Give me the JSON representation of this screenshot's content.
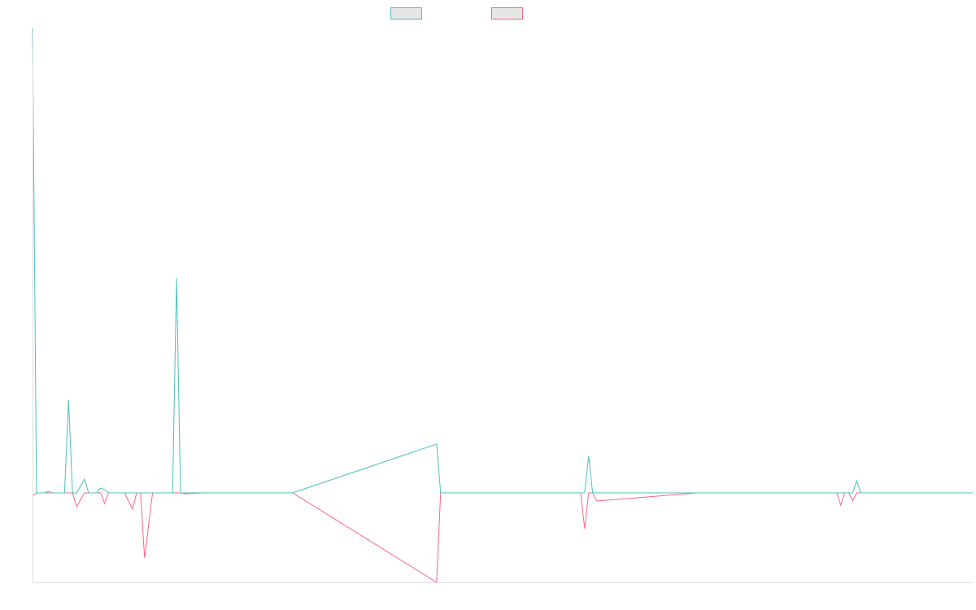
{
  "colors": {
    "series_a": "#4bc0c0",
    "series_b": "#ff6384",
    "axis": "#dddddd",
    "legend_fill": "#e6e6e6"
  },
  "chart_data": {
    "type": "line",
    "xlabel": "",
    "ylabel": "",
    "grid": false,
    "legend_placement": "top-center",
    "ylim": [
      -110,
      570
    ],
    "x": [
      0,
      1,
      3,
      4,
      5,
      6,
      8,
      9,
      10,
      11,
      13,
      14,
      15,
      16,
      17,
      18,
      19,
      20,
      21,
      23,
      25,
      26,
      27,
      28,
      30,
      31,
      32,
      33,
      35,
      36,
      37,
      38,
      43,
      44,
      45,
      46,
      51,
      52,
      53,
      54,
      55,
      58,
      59,
      60,
      61,
      62,
      63,
      64,
      65,
      101,
      102,
      103,
      104,
      105,
      137,
      138,
      139,
      140,
      141,
      166,
      167,
      168,
      169,
      170,
      171,
      172,
      174,
      175,
      176,
      177,
      178,
      179,
      180,
      181,
      182,
      201,
      202,
      203,
      204,
      205,
      206,
      207,
      208,
      209,
      210,
      211,
      212,
      235
    ],
    "series": [
      {
        "name": "",
        "values": [
          571,
          0,
          0,
          2,
          0,
          0,
          0,
          114,
          0,
          0,
          17,
          0,
          0,
          0,
          6,
          4,
          0,
          0,
          0,
          0,
          0,
          0,
          0,
          0,
          0,
          0,
          0,
          0,
          0,
          264,
          0,
          0,
          0,
          0,
          0,
          0,
          0,
          0,
          0,
          0,
          0,
          0,
          0,
          0,
          0,
          0,
          0,
          0,
          0,
          60,
          0,
          0,
          0,
          0,
          0,
          0,
          45,
          0,
          0,
          0,
          0,
          0,
          0,
          0,
          0,
          0,
          0,
          0,
          0,
          0,
          0,
          0,
          0,
          0,
          0,
          0,
          0,
          0,
          0,
          0,
          15,
          0,
          0,
          0,
          0,
          0,
          0,
          0
        ]
      },
      {
        "name": "",
        "values": [
          -4,
          0,
          0,
          0,
          0,
          0,
          0,
          0,
          0,
          -17,
          0,
          0,
          0,
          0,
          0,
          -13,
          0,
          0,
          0,
          0,
          -20,
          0,
          0,
          -80,
          0,
          0,
          0,
          0,
          0,
          0,
          0,
          -1,
          0,
          0,
          0,
          0,
          0,
          0,
          0,
          0,
          0,
          0,
          0,
          0,
          0,
          0,
          0,
          0,
          0,
          -110,
          0,
          0,
          0,
          0,
          0,
          -44,
          0,
          0,
          -10,
          0,
          0,
          0,
          0,
          0,
          0,
          0,
          0,
          0,
          0,
          0,
          0,
          0,
          0,
          0,
          0,
          0,
          -15,
          0,
          0,
          -10,
          0,
          0,
          0,
          0,
          0,
          0,
          0,
          0
        ]
      }
    ]
  }
}
